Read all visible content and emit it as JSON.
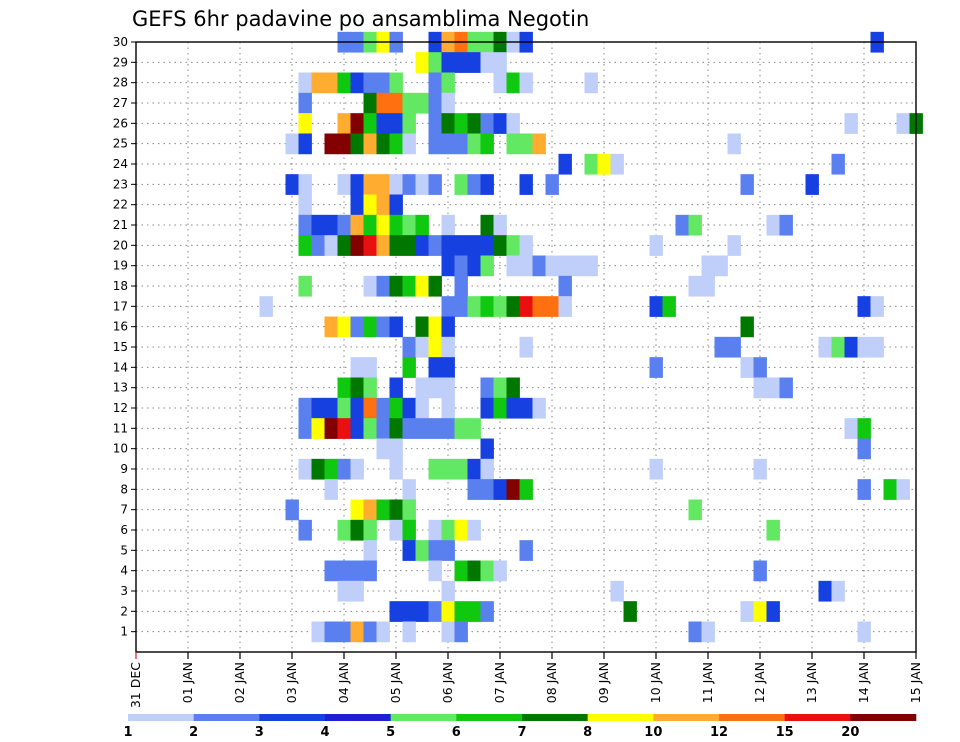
{
  "chart_data": {
    "type": "heatmap",
    "title": "GEFS 6hr padavine po ansamblima Negotin",
    "xlabel": "",
    "ylabel": "",
    "x_unit": "6-hour step from 31 DEC 00Z",
    "x_range": [
      0,
      60
    ],
    "y_range": [
      0,
      30
    ],
    "y_ticks": [
      1,
      2,
      3,
      4,
      5,
      6,
      7,
      8,
      9,
      10,
      11,
      12,
      13,
      14,
      15,
      16,
      17,
      18,
      19,
      20,
      21,
      22,
      23,
      24,
      25,
      26,
      27,
      28,
      29,
      30
    ],
    "x_tick_labels": [
      {
        "step": 0,
        "label": "31 DEC"
      },
      {
        "step": 4,
        "label": "01 JAN"
      },
      {
        "step": 8,
        "label": "02 JAN"
      },
      {
        "step": 12,
        "label": "03 JAN"
      },
      {
        "step": 16,
        "label": "04 JAN"
      },
      {
        "step": 20,
        "label": "05 JAN"
      },
      {
        "step": 24,
        "label": "06 JAN"
      },
      {
        "step": 28,
        "label": "07 JAN"
      },
      {
        "step": 32,
        "label": "08 JAN"
      },
      {
        "step": 36,
        "label": "09 JAN"
      },
      {
        "step": 40,
        "label": "10 JAN"
      },
      {
        "step": 44,
        "label": "11 JAN"
      },
      {
        "step": 48,
        "label": "12 JAN"
      },
      {
        "step": 52,
        "label": "13 JAN"
      },
      {
        "step": 56,
        "label": "14 JAN"
      },
      {
        "step": 60,
        "label": "15 JAN"
      }
    ],
    "grid": true,
    "legend": {
      "placement": "bottom",
      "levels": [
        "1",
        "2",
        "3",
        "4",
        "5",
        "6",
        "7",
        "8",
        "10",
        "12",
        "15",
        "20"
      ],
      "colors": [
        "#bfcffa",
        "#5a80f0",
        "#1640e0",
        "#1e1ed2",
        "#62e862",
        "#10c810",
        "#007800",
        "#ffff00",
        "#ffac30",
        "#ff7010",
        "#e81010",
        "#820000"
      ]
    },
    "cells": [
      [
        16,
        30,
        2
      ],
      [
        17,
        30,
        2
      ],
      [
        18,
        30,
        5
      ],
      [
        19,
        30,
        8
      ],
      [
        20,
        30,
        2
      ],
      [
        23,
        30,
        3
      ],
      [
        24,
        30,
        9
      ],
      [
        25,
        30,
        10
      ],
      [
        26,
        30,
        5
      ],
      [
        27,
        30,
        5
      ],
      [
        28,
        30,
        7
      ],
      [
        29,
        30,
        1
      ],
      [
        30,
        30,
        3
      ],
      [
        57,
        30,
        3
      ],
      [
        22,
        29,
        8
      ],
      [
        23,
        29,
        5
      ],
      [
        24,
        29,
        3
      ],
      [
        25,
        29,
        3
      ],
      [
        26,
        29,
        3
      ],
      [
        27,
        29,
        1
      ],
      [
        28,
        29,
        1
      ],
      [
        13,
        28,
        1
      ],
      [
        14,
        28,
        9
      ],
      [
        15,
        28,
        9
      ],
      [
        16,
        28,
        6
      ],
      [
        17,
        28,
        3
      ],
      [
        18,
        28,
        2
      ],
      [
        19,
        28,
        2
      ],
      [
        20,
        28,
        5
      ],
      [
        23,
        28,
        2
      ],
      [
        24,
        28,
        5
      ],
      [
        28,
        28,
        1
      ],
      [
        29,
        28,
        6
      ],
      [
        30,
        28,
        1
      ],
      [
        35,
        28,
        1
      ],
      [
        13,
        27,
        2
      ],
      [
        18,
        27,
        7
      ],
      [
        19,
        27,
        10
      ],
      [
        20,
        27,
        10
      ],
      [
        21,
        27,
        5
      ],
      [
        22,
        27,
        5
      ],
      [
        23,
        27,
        2
      ],
      [
        24,
        27,
        1
      ],
      [
        13,
        26,
        8
      ],
      [
        16,
        26,
        9
      ],
      [
        17,
        26,
        12
      ],
      [
        18,
        26,
        6
      ],
      [
        19,
        26,
        3
      ],
      [
        20,
        26,
        3
      ],
      [
        21,
        26,
        5
      ],
      [
        23,
        26,
        2
      ],
      [
        24,
        26,
        7
      ],
      [
        25,
        26,
        6
      ],
      [
        26,
        26,
        7
      ],
      [
        27,
        26,
        2
      ],
      [
        28,
        26,
        3
      ],
      [
        29,
        26,
        1
      ],
      [
        55,
        26,
        1
      ],
      [
        59,
        26,
        1
      ],
      [
        60,
        26,
        7
      ],
      [
        12,
        25,
        1
      ],
      [
        13,
        25,
        3
      ],
      [
        15,
        25,
        12
      ],
      [
        16,
        25,
        12
      ],
      [
        17,
        25,
        7
      ],
      [
        18,
        25,
        9
      ],
      [
        19,
        25,
        7
      ],
      [
        20,
        25,
        6
      ],
      [
        21,
        25,
        1
      ],
      [
        23,
        25,
        2
      ],
      [
        24,
        25,
        2
      ],
      [
        25,
        25,
        2
      ],
      [
        26,
        25,
        5
      ],
      [
        27,
        25,
        6
      ],
      [
        29,
        25,
        5
      ],
      [
        30,
        25,
        5
      ],
      [
        31,
        25,
        9
      ],
      [
        46,
        25,
        1
      ],
      [
        33,
        24,
        3
      ],
      [
        35,
        24,
        5
      ],
      [
        36,
        24,
        8
      ],
      [
        37,
        24,
        1
      ],
      [
        54,
        24,
        2
      ],
      [
        12,
        23,
        3
      ],
      [
        13,
        23,
        1
      ],
      [
        16,
        23,
        1
      ],
      [
        17,
        23,
        3
      ],
      [
        18,
        23,
        9
      ],
      [
        19,
        23,
        9
      ],
      [
        20,
        23,
        1
      ],
      [
        21,
        23,
        2
      ],
      [
        22,
        23,
        1
      ],
      [
        23,
        23,
        2
      ],
      [
        25,
        23,
        5
      ],
      [
        26,
        23,
        2
      ],
      [
        27,
        23,
        3
      ],
      [
        30,
        23,
        3
      ],
      [
        32,
        23,
        2
      ],
      [
        47,
        23,
        2
      ],
      [
        52,
        23,
        3
      ],
      [
        13,
        22,
        1
      ],
      [
        17,
        22,
        3
      ],
      [
        18,
        22,
        8
      ],
      [
        19,
        22,
        9
      ],
      [
        20,
        22,
        3
      ],
      [
        13,
        21,
        2
      ],
      [
        14,
        21,
        3
      ],
      [
        15,
        21,
        3
      ],
      [
        16,
        21,
        2
      ],
      [
        17,
        21,
        9
      ],
      [
        18,
        21,
        6
      ],
      [
        19,
        21,
        8
      ],
      [
        20,
        21,
        6
      ],
      [
        21,
        21,
        5
      ],
      [
        22,
        21,
        6
      ],
      [
        24,
        21,
        1
      ],
      [
        27,
        21,
        7
      ],
      [
        28,
        21,
        1
      ],
      [
        42,
        21,
        2
      ],
      [
        43,
        21,
        5
      ],
      [
        49,
        21,
        1
      ],
      [
        50,
        21,
        2
      ],
      [
        13,
        20,
        6
      ],
      [
        14,
        20,
        2
      ],
      [
        15,
        20,
        1
      ],
      [
        16,
        20,
        7
      ],
      [
        17,
        20,
        12
      ],
      [
        18,
        20,
        11
      ],
      [
        19,
        20,
        9
      ],
      [
        20,
        20,
        7
      ],
      [
        21,
        20,
        7
      ],
      [
        22,
        20,
        3
      ],
      [
        23,
        20,
        2
      ],
      [
        24,
        20,
        3
      ],
      [
        25,
        20,
        3
      ],
      [
        26,
        20,
        3
      ],
      [
        27,
        20,
        3
      ],
      [
        28,
        20,
        7
      ],
      [
        29,
        20,
        5
      ],
      [
        30,
        20,
        1
      ],
      [
        40,
        20,
        1
      ],
      [
        46,
        20,
        1
      ],
      [
        24,
        19,
        3
      ],
      [
        25,
        19,
        2
      ],
      [
        26,
        19,
        3
      ],
      [
        27,
        19,
        5
      ],
      [
        29,
        19,
        1
      ],
      [
        30,
        19,
        1
      ],
      [
        31,
        19,
        2
      ],
      [
        32,
        19,
        1
      ],
      [
        33,
        19,
        1
      ],
      [
        34,
        19,
        1
      ],
      [
        35,
        19,
        1
      ],
      [
        44,
        19,
        1
      ],
      [
        45,
        19,
        1
      ],
      [
        13,
        18,
        5
      ],
      [
        18,
        18,
        1
      ],
      [
        19,
        18,
        2
      ],
      [
        20,
        18,
        7
      ],
      [
        21,
        18,
        6
      ],
      [
        22,
        18,
        8
      ],
      [
        23,
        18,
        7
      ],
      [
        25,
        18,
        2
      ],
      [
        33,
        18,
        2
      ],
      [
        43,
        18,
        1
      ],
      [
        44,
        18,
        1
      ],
      [
        10,
        17,
        1
      ],
      [
        24,
        17,
        2
      ],
      [
        25,
        17,
        2
      ],
      [
        26,
        17,
        5
      ],
      [
        27,
        17,
        6
      ],
      [
        28,
        17,
        5
      ],
      [
        29,
        17,
        7
      ],
      [
        30,
        17,
        11
      ],
      [
        31,
        17,
        10
      ],
      [
        32,
        17,
        10
      ],
      [
        33,
        17,
        1
      ],
      [
        40,
        17,
        3
      ],
      [
        41,
        17,
        6
      ],
      [
        56,
        17,
        3
      ],
      [
        57,
        17,
        1
      ],
      [
        15,
        16,
        9
      ],
      [
        16,
        16,
        8
      ],
      [
        17,
        16,
        2
      ],
      [
        18,
        16,
        6
      ],
      [
        19,
        16,
        2
      ],
      [
        20,
        16,
        3
      ],
      [
        22,
        16,
        7
      ],
      [
        23,
        16,
        8
      ],
      [
        24,
        16,
        3
      ],
      [
        47,
        16,
        7
      ],
      [
        21,
        15,
        2
      ],
      [
        22,
        15,
        1
      ],
      [
        23,
        15,
        8
      ],
      [
        24,
        15,
        1
      ],
      [
        30,
        15,
        1
      ],
      [
        45,
        15,
        2
      ],
      [
        46,
        15,
        2
      ],
      [
        53,
        15,
        1
      ],
      [
        54,
        15,
        5
      ],
      [
        55,
        15,
        3
      ],
      [
        56,
        15,
        1
      ],
      [
        57,
        15,
        1
      ],
      [
        17,
        14,
        1
      ],
      [
        18,
        14,
        1
      ],
      [
        21,
        14,
        6
      ],
      [
        23,
        14,
        3
      ],
      [
        24,
        14,
        3
      ],
      [
        40,
        14,
        2
      ],
      [
        47,
        14,
        1
      ],
      [
        48,
        14,
        2
      ],
      [
        16,
        13,
        6
      ],
      [
        17,
        13,
        7
      ],
      [
        18,
        13,
        5
      ],
      [
        20,
        13,
        3
      ],
      [
        22,
        13,
        1
      ],
      [
        23,
        13,
        1
      ],
      [
        24,
        13,
        1
      ],
      [
        27,
        13,
        2
      ],
      [
        28,
        13,
        5
      ],
      [
        29,
        13,
        7
      ],
      [
        48,
        13,
        1
      ],
      [
        49,
        13,
        1
      ],
      [
        50,
        13,
        2
      ],
      [
        13,
        12,
        2
      ],
      [
        14,
        12,
        3
      ],
      [
        15,
        12,
        3
      ],
      [
        16,
        12,
        5
      ],
      [
        17,
        12,
        3
      ],
      [
        18,
        12,
        10
      ],
      [
        19,
        12,
        2
      ],
      [
        20,
        12,
        6
      ],
      [
        21,
        12,
        3
      ],
      [
        22,
        12,
        1
      ],
      [
        24,
        12,
        1
      ],
      [
        27,
        12,
        3
      ],
      [
        28,
        12,
        6
      ],
      [
        29,
        12,
        3
      ],
      [
        30,
        12,
        3
      ],
      [
        31,
        12,
        1
      ],
      [
        13,
        11,
        2
      ],
      [
        14,
        11,
        8
      ],
      [
        15,
        11,
        12
      ],
      [
        16,
        11,
        11
      ],
      [
        17,
        11,
        3
      ],
      [
        18,
        11,
        5
      ],
      [
        19,
        11,
        2
      ],
      [
        20,
        11,
        7
      ],
      [
        21,
        11,
        2
      ],
      [
        22,
        11,
        2
      ],
      [
        23,
        11,
        2
      ],
      [
        24,
        11,
        2
      ],
      [
        25,
        11,
        5
      ],
      [
        26,
        11,
        5
      ],
      [
        55,
        11,
        1
      ],
      [
        56,
        11,
        6
      ],
      [
        19,
        10,
        1
      ],
      [
        20,
        10,
        1
      ],
      [
        27,
        10,
        3
      ],
      [
        56,
        10,
        2
      ],
      [
        13,
        9,
        1
      ],
      [
        14,
        9,
        7
      ],
      [
        15,
        9,
        6
      ],
      [
        16,
        9,
        2
      ],
      [
        17,
        9,
        1
      ],
      [
        20,
        9,
        1
      ],
      [
        23,
        9,
        5
      ],
      [
        24,
        9,
        5
      ],
      [
        25,
        9,
        5
      ],
      [
        26,
        9,
        3
      ],
      [
        27,
        9,
        1
      ],
      [
        40,
        9,
        1
      ],
      [
        48,
        9,
        1
      ],
      [
        15,
        8,
        1
      ],
      [
        21,
        8,
        1
      ],
      [
        26,
        8,
        2
      ],
      [
        27,
        8,
        2
      ],
      [
        28,
        8,
        3
      ],
      [
        29,
        8,
        12
      ],
      [
        30,
        8,
        6
      ],
      [
        56,
        8,
        2
      ],
      [
        58,
        8,
        6
      ],
      [
        59,
        8,
        1
      ],
      [
        12,
        7,
        2
      ],
      [
        17,
        7,
        8
      ],
      [
        18,
        7,
        9
      ],
      [
        19,
        7,
        6
      ],
      [
        20,
        7,
        7
      ],
      [
        21,
        7,
        5
      ],
      [
        43,
        7,
        5
      ],
      [
        13,
        6,
        2
      ],
      [
        16,
        6,
        5
      ],
      [
        17,
        6,
        7
      ],
      [
        18,
        6,
        5
      ],
      [
        20,
        6,
        1
      ],
      [
        21,
        6,
        6
      ],
      [
        23,
        6,
        1
      ],
      [
        24,
        6,
        5
      ],
      [
        25,
        6,
        8
      ],
      [
        26,
        6,
        1
      ],
      [
        49,
        6,
        5
      ],
      [
        18,
        5,
        1
      ],
      [
        21,
        5,
        3
      ],
      [
        22,
        5,
        5
      ],
      [
        23,
        5,
        2
      ],
      [
        24,
        5,
        2
      ],
      [
        30,
        5,
        2
      ],
      [
        15,
        4,
        2
      ],
      [
        16,
        4,
        2
      ],
      [
        17,
        4,
        2
      ],
      [
        18,
        4,
        2
      ],
      [
        23,
        4,
        1
      ],
      [
        25,
        4,
        6
      ],
      [
        26,
        4,
        7
      ],
      [
        27,
        4,
        5
      ],
      [
        28,
        4,
        1
      ],
      [
        48,
        4,
        2
      ],
      [
        16,
        3,
        1
      ],
      [
        17,
        3,
        1
      ],
      [
        24,
        3,
        1
      ],
      [
        37,
        3,
        1
      ],
      [
        53,
        3,
        3
      ],
      [
        54,
        3,
        1
      ],
      [
        20,
        2,
        3
      ],
      [
        21,
        2,
        3
      ],
      [
        22,
        2,
        3
      ],
      [
        23,
        2,
        2
      ],
      [
        24,
        2,
        8
      ],
      [
        25,
        2,
        6
      ],
      [
        26,
        2,
        6
      ],
      [
        27,
        2,
        2
      ],
      [
        38,
        2,
        7
      ],
      [
        47,
        2,
        1
      ],
      [
        48,
        2,
        8
      ],
      [
        49,
        2,
        3
      ],
      [
        14,
        1,
        1
      ],
      [
        15,
        1,
        2
      ],
      [
        16,
        1,
        2
      ],
      [
        17,
        1,
        9
      ],
      [
        18,
        1,
        2
      ],
      [
        19,
        1,
        1
      ],
      [
        21,
        1,
        1
      ],
      [
        24,
        1,
        1
      ],
      [
        25,
        1,
        2
      ],
      [
        43,
        1,
        2
      ],
      [
        44,
        1,
        1
      ],
      [
        56,
        1,
        1
      ]
    ]
  }
}
